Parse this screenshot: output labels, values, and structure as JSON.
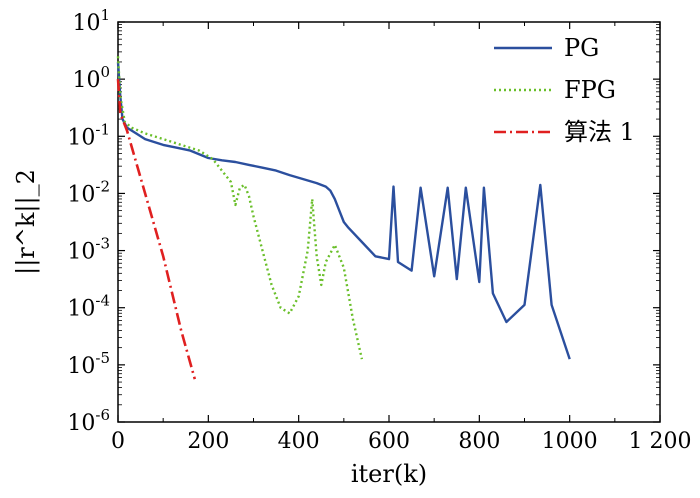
{
  "chart_data": {
    "type": "line",
    "title": "",
    "xlabel": "iter(k)",
    "ylabel": "||r^k||_2",
    "xlim": [
      0,
      1200
    ],
    "ylim_log10": [
      -6,
      1
    ],
    "yscale": "log",
    "grid": false,
    "legend_position": "top-right",
    "x_ticks": [
      0,
      200,
      400,
      600,
      800,
      1000,
      1200
    ],
    "x_tick_labels": [
      "0",
      "200",
      "400",
      "600",
      "800",
      "1000",
      "1 200"
    ],
    "y_ticks_log10": [
      1,
      0,
      -1,
      -2,
      -3,
      -4,
      -5,
      -6
    ],
    "y_tick_labels": [
      "10^1",
      "10^0",
      "10^-1",
      "10^-2",
      "10^-3",
      "10^-4",
      "10^-5",
      "10^-6"
    ],
    "series": [
      {
        "name": "PG",
        "color": "#2b4f9e",
        "dash": "solid",
        "x": [
          0,
          5,
          10,
          20,
          40,
          60,
          80,
          100,
          130,
          160,
          200,
          230,
          260,
          290,
          320,
          350,
          380,
          410,
          440,
          460,
          470,
          480,
          490,
          500,
          510,
          540,
          570,
          600,
          610,
          620,
          650,
          670,
          700,
          730,
          750,
          770,
          800,
          810,
          830,
          860,
          900,
          935,
          960,
          1000
        ],
        "log10_y": [
          0.3,
          -0.3,
          -0.7,
          -0.85,
          -0.95,
          -1.05,
          -1.1,
          -1.15,
          -1.2,
          -1.25,
          -1.38,
          -1.42,
          -1.45,
          -1.5,
          -1.55,
          -1.6,
          -1.68,
          -1.75,
          -1.82,
          -1.88,
          -1.95,
          -2.1,
          -2.3,
          -2.5,
          -2.6,
          -2.85,
          -3.1,
          -3.15,
          -1.88,
          -3.2,
          -3.35,
          -1.9,
          -3.45,
          -1.9,
          -3.5,
          -1.9,
          -3.55,
          -1.9,
          -3.75,
          -4.25,
          -3.95,
          -1.85,
          -3.95,
          -4.9
        ]
      },
      {
        "name": "FPG",
        "color": "#6abf2a",
        "dash": "dotted",
        "x": [
          0,
          5,
          15,
          30,
          60,
          100,
          140,
          180,
          210,
          230,
          250,
          260,
          270,
          280,
          290,
          300,
          320,
          340,
          360,
          380,
          400,
          420,
          430,
          440,
          450,
          460,
          480,
          500,
          520,
          540
        ],
        "log10_y": [
          0.4,
          -0.3,
          -0.75,
          -0.85,
          -0.95,
          -1.05,
          -1.15,
          -1.25,
          -1.4,
          -1.6,
          -1.8,
          -2.2,
          -1.9,
          -1.85,
          -2.05,
          -2.4,
          -3.0,
          -3.6,
          -4.0,
          -4.1,
          -3.8,
          -3.0,
          -2.1,
          -3.1,
          -3.6,
          -3.2,
          -2.9,
          -3.3,
          -4.2,
          -4.9
        ]
      },
      {
        "name": "算法 1",
        "color": "#e02020",
        "dash": "dashdot",
        "x": [
          0,
          5,
          20,
          60,
          100,
          140,
          170
        ],
        "log10_y": [
          0.0,
          -0.6,
          -0.9,
          -2.0,
          -3.1,
          -4.4,
          -5.25
        ]
      }
    ]
  }
}
